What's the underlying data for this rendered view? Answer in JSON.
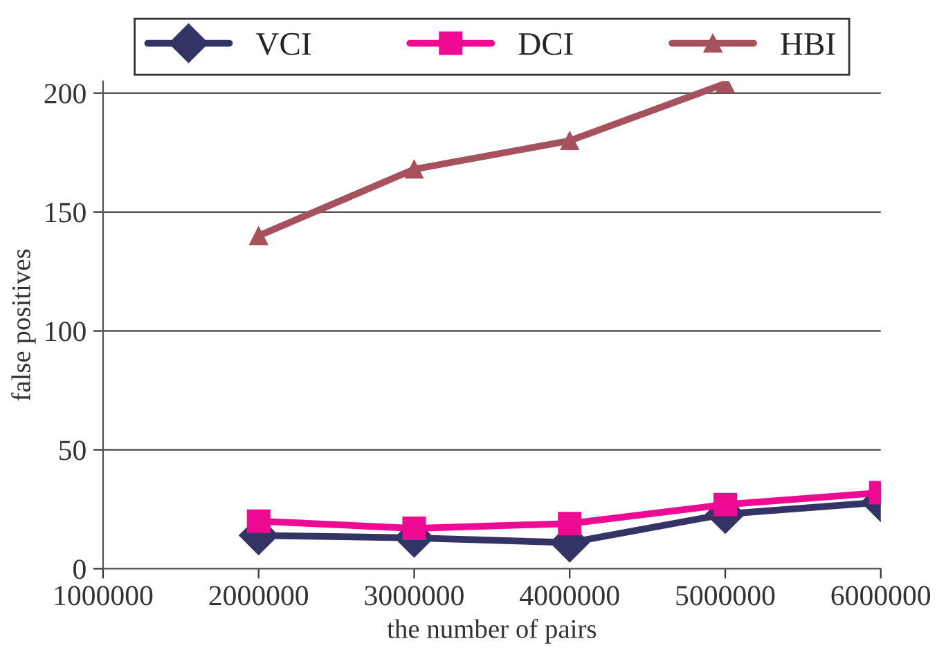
{
  "chart_data": {
    "type": "line",
    "xlabel": "the number of pairs",
    "ylabel": "false positives",
    "x": [
      2000000,
      3000000,
      4000000,
      5000000,
      6000000
    ],
    "xlim": [
      1000000,
      6000000
    ],
    "xticks": [
      1000000,
      2000000,
      3000000,
      4000000,
      5000000,
      6000000
    ],
    "ylim": [
      0,
      205
    ],
    "yticks": [
      0,
      50,
      100,
      150,
      200
    ],
    "grid": "y",
    "legend": "top",
    "series": [
      {
        "name": "VCI",
        "color": "#333366",
        "values": [
          14,
          13,
          11,
          23,
          28
        ],
        "marker": "diamond"
      },
      {
        "name": "DCI",
        "color": "#ee0a92",
        "values": [
          20,
          17,
          19,
          27,
          32
        ],
        "marker": "square"
      },
      {
        "name": "HBI",
        "color": "#a5525e",
        "values": [
          140,
          168,
          180,
          204,
          null
        ],
        "marker": "triangle"
      }
    ]
  }
}
